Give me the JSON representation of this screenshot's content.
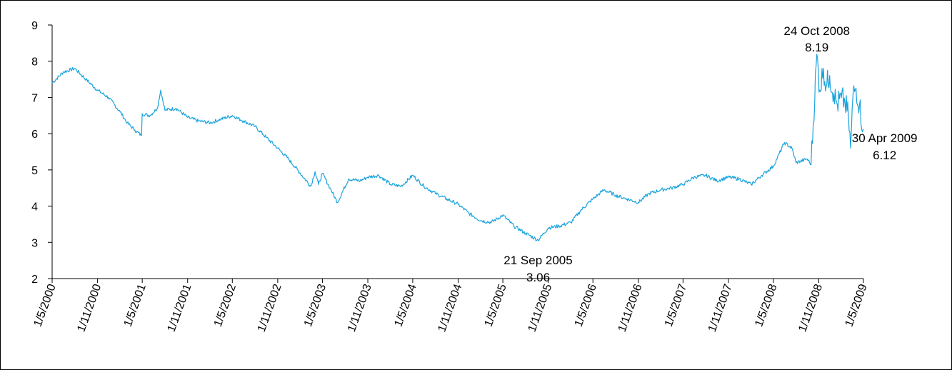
{
  "chart_data": {
    "type": "line",
    "title": "",
    "xlabel": "",
    "ylabel": "",
    "ylim": [
      2,
      9
    ],
    "yticks": [
      2,
      3,
      4,
      5,
      6,
      7,
      8,
      9
    ],
    "xlim": [
      "2000-05-01",
      "2009-05-01"
    ],
    "xticks": [
      "1/5/2000",
      "1/11/2000",
      "1/5/2001",
      "1/11/2001",
      "1/5/2002",
      "1/11/2002",
      "1/5/2003",
      "1/11/2003",
      "1/5/2004",
      "1/11/2004",
      "1/5/2005",
      "1/11/2005",
      "1/5/2006",
      "1/11/2006",
      "1/5/2007",
      "1/11/2007",
      "1/5/2008",
      "1/11/2008",
      "1/5/2009"
    ],
    "grid": false,
    "legend": "none",
    "line_color": "#1aa3dd",
    "series": [
      {
        "x": [
          "2000-05-01",
          "2000-06-15",
          "2000-08-01",
          "2000-09-15",
          "2000-11-01",
          "2000-12-15",
          "2001-02-01",
          "2001-03-01",
          "2001-04-01",
          "2001-04-28",
          "2001-05-01",
          "2001-06-01",
          "2001-07-01",
          "2001-07-15",
          "2001-08-01",
          "2001-09-15",
          "2001-11-01",
          "2001-12-15",
          "2002-02-01",
          "2002-03-15",
          "2002-05-01",
          "2002-06-15",
          "2002-08-01",
          "2002-09-15",
          "2002-11-01",
          "2002-12-15",
          "2003-02-01",
          "2003-03-15",
          "2003-04-01",
          "2003-04-15",
          "2003-05-01",
          "2003-06-01",
          "2003-07-01",
          "2003-08-15",
          "2003-10-01",
          "2003-11-01",
          "2003-12-15",
          "2004-02-01",
          "2004-03-15",
          "2004-05-01",
          "2004-06-15",
          "2004-08-01",
          "2004-09-15",
          "2004-11-01",
          "2004-12-15",
          "2005-02-01",
          "2005-03-15",
          "2005-05-01",
          "2005-06-15",
          "2005-08-01",
          "2005-09-21",
          "2005-11-01",
          "2005-12-15",
          "2006-02-01",
          "2006-03-15",
          "2006-05-01",
          "2006-06-15",
          "2006-08-01",
          "2006-09-15",
          "2006-11-01",
          "2006-12-15",
          "2007-02-01",
          "2007-03-15",
          "2007-05-01",
          "2007-06-15",
          "2007-08-01",
          "2007-09-15",
          "2007-11-01",
          "2007-12-15",
          "2008-02-01",
          "2008-03-15",
          "2008-05-01",
          "2008-06-15",
          "2008-07-15",
          "2008-08-01",
          "2008-09-15",
          "2008-10-01",
          "2008-10-24",
          "2008-11-05",
          "2008-11-20",
          "2008-12-01",
          "2008-12-15",
          "2009-01-01",
          "2009-01-15",
          "2009-02-01",
          "2009-02-15",
          "2009-03-01",
          "2009-03-10",
          "2009-03-20",
          "2009-04-01",
          "2009-04-15",
          "2009-04-30"
        ],
        "y": [
          7.4,
          7.7,
          7.8,
          7.5,
          7.2,
          7.0,
          6.6,
          6.3,
          6.1,
          5.95,
          6.55,
          6.5,
          6.7,
          7.2,
          6.65,
          6.7,
          6.45,
          6.35,
          6.3,
          6.4,
          6.5,
          6.35,
          6.2,
          5.9,
          5.6,
          5.3,
          4.9,
          4.55,
          4.95,
          4.6,
          4.9,
          4.5,
          4.1,
          4.75,
          4.7,
          4.8,
          4.85,
          4.6,
          4.55,
          4.85,
          4.55,
          4.35,
          4.2,
          4.05,
          3.8,
          3.6,
          3.55,
          3.75,
          3.45,
          3.25,
          3.06,
          3.4,
          3.45,
          3.55,
          3.9,
          4.2,
          4.45,
          4.3,
          4.2,
          4.1,
          4.35,
          4.45,
          4.5,
          4.6,
          4.8,
          4.85,
          4.7,
          4.8,
          4.75,
          4.6,
          4.85,
          5.1,
          5.75,
          5.6,
          5.2,
          5.3,
          5.15,
          8.19,
          7.2,
          7.8,
          7.3,
          7.6,
          7.1,
          6.8,
          7.0,
          6.85,
          6.5,
          5.6,
          7.1,
          7.25,
          6.8,
          6.12
        ]
      }
    ],
    "annotations": [
      {
        "label": "24 Oct 2008",
        "value": "8.19",
        "x": "2008-10-24",
        "y": 8.19
      },
      {
        "label": "21 Sep 2005",
        "value": "3.06",
        "x": "2005-09-21",
        "y": 3.06
      },
      {
        "label": "30 Apr 2009",
        "value": "6.12",
        "x": "2009-04-30",
        "y": 6.12
      }
    ]
  }
}
